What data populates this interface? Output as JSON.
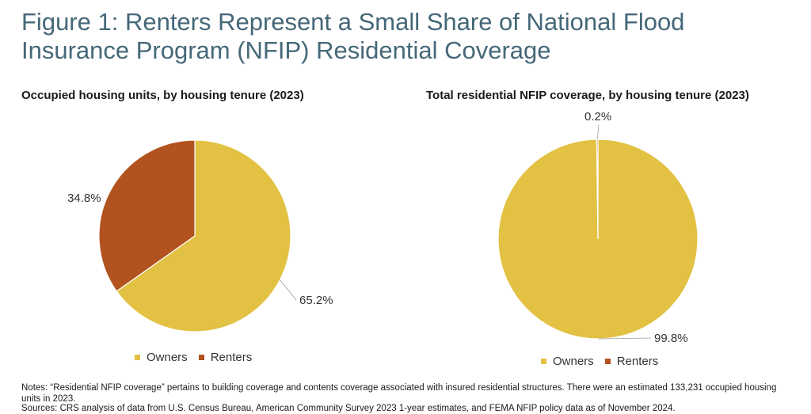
{
  "title": "Figure 1: Renters Represent a Small Share of National Flood Insurance Program (NFIP) Residential Coverage",
  "colors": {
    "owners": "#E2C143",
    "renters": "#B2531F",
    "title": "#456878"
  },
  "chart_data": [
    {
      "type": "pie",
      "title": "Occupied housing units, by housing tenure (2023)",
      "categories": [
        "Owners",
        "Renters"
      ],
      "values": [
        65.2,
        34.8
      ],
      "labels": [
        "65.2%",
        "34.8%"
      ],
      "legend": "bottom"
    },
    {
      "type": "pie",
      "title": "Total residential NFIP coverage, by housing tenure (2023)",
      "categories": [
        "Owners",
        "Renters"
      ],
      "values": [
        99.8,
        0.2
      ],
      "labels": [
        "99.8%",
        "0.2%"
      ],
      "legend": "bottom"
    }
  ],
  "legend": {
    "owners": "Owners",
    "renters": "Renters"
  },
  "notes": "Notes: “Residential NFIP coverage” pertains to building coverage and contents coverage associated with insured residential structures. There were an estimated 133,231 occupied housing units in 2023.",
  "source": "Sources: CRS analysis of data from U.S. Census Bureau, American Community Survey 2023 1-year estimates, and FEMA NFIP policy data as of November 2024."
}
